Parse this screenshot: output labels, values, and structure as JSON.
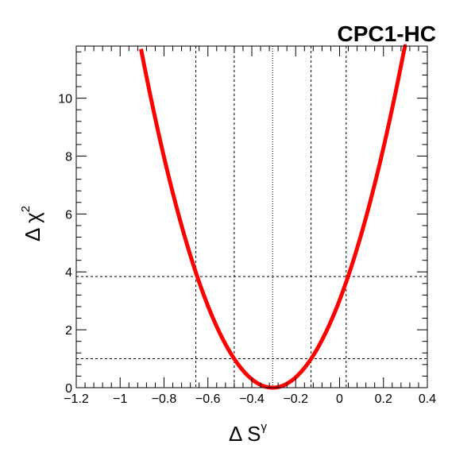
{
  "chart_data": {
    "type": "line",
    "title": "CPC1-HC",
    "xlabel": "Δ S",
    "xlabel_sup": "γ",
    "ylabel": "Δ χ",
    "ylabel_sup": "2",
    "xlim": [
      -1.2,
      0.4
    ],
    "ylim": [
      0,
      11.8
    ],
    "x_ticks": [
      -1.2,
      -1,
      -0.8,
      -0.6,
      -0.4,
      -0.2,
      0,
      0.2,
      0.4
    ],
    "x_tick_labels": [
      "−1.2",
      "−1",
      "−0.8",
      "−0.6",
      "−0.4",
      "−0.2",
      "0",
      "0.2",
      "0.4"
    ],
    "y_ticks": [
      0,
      2,
      4,
      6,
      8,
      10
    ],
    "y_tick_labels": [
      "0",
      "2",
      "4",
      "6",
      "8",
      "10"
    ],
    "grid": false,
    "curve": {
      "color": "#ff0000",
      "x_min": -0.905,
      "x_max": 0.305,
      "best_fit_x": -0.305,
      "quadratic_coeff": 32.5
    },
    "reference_lines": {
      "horizontal": [
        1.0,
        3.84
      ],
      "vertical_dashed": [
        -0.655,
        -0.48,
        -0.13,
        0.03
      ],
      "vertical_dotted": [
        -0.305
      ]
    }
  }
}
